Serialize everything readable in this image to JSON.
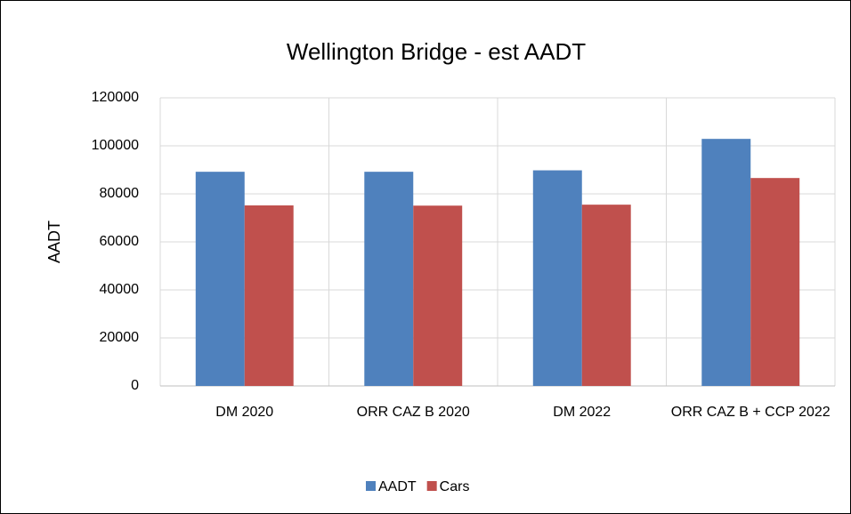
{
  "chart_data": {
    "type": "bar",
    "title": "Wellington Bridge - est AADT",
    "y_label": "AADT",
    "categories": [
      "DM 2020",
      "ORR CAZ B 2020",
      "DM 2022",
      "ORR CAZ B + CCP 2022"
    ],
    "series": [
      {
        "name": "AADT",
        "color": "#4f81bd",
        "values": [
          89200,
          89200,
          89800,
          102900
        ]
      },
      {
        "name": "Cars",
        "color": "#c0504d",
        "values": [
          75200,
          75100,
          75500,
          86600
        ]
      }
    ],
    "ylim": [
      0,
      120000
    ],
    "yticks": [
      0,
      20000,
      40000,
      60000,
      80000,
      100000,
      120000
    ],
    "grid": true,
    "legend": "bottom"
  }
}
